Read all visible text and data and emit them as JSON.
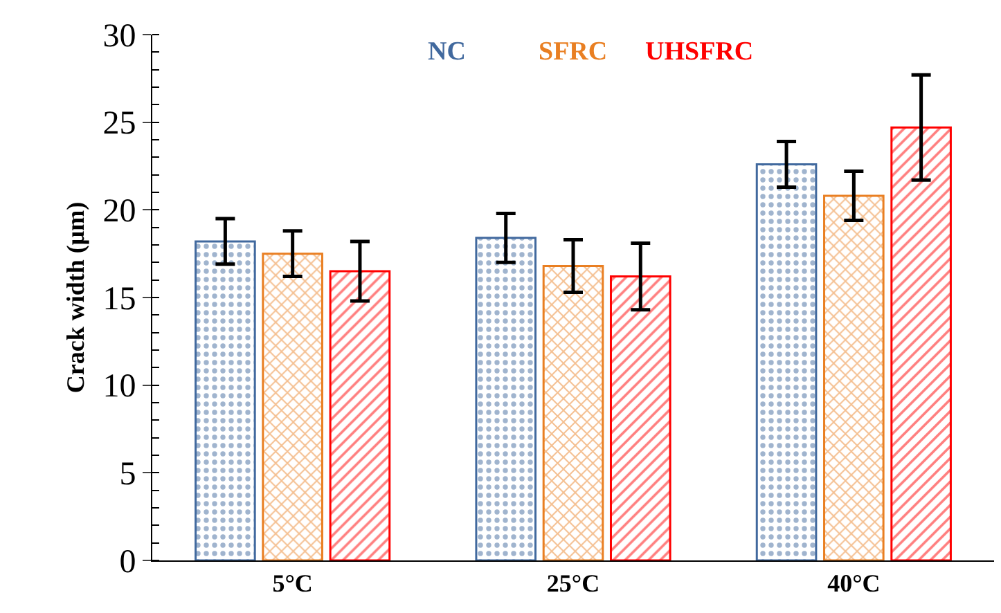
{
  "chart_data": {
    "type": "bar",
    "ylabel": "Crack width (μm)",
    "categories": [
      "5°C",
      "25°C",
      "40°C"
    ],
    "series": [
      {
        "name": "NC",
        "color": "#41699e",
        "values": [
          18.2,
          18.4,
          22.6
        ],
        "errors": [
          1.3,
          1.4,
          1.3
        ]
      },
      {
        "name": "SFRC",
        "color": "#e97f22",
        "values": [
          17.5,
          16.8,
          20.8
        ],
        "errors": [
          1.3,
          1.5,
          1.4
        ]
      },
      {
        "name": "UHSFRC",
        "color": "#ff0000",
        "values": [
          16.5,
          16.2,
          24.7
        ],
        "errors": [
          1.7,
          1.9,
          3.0
        ]
      }
    ],
    "ylim": [
      0,
      30
    ],
    "yticks": [
      0,
      5,
      10,
      15,
      20,
      25,
      30
    ],
    "legend": "top"
  }
}
